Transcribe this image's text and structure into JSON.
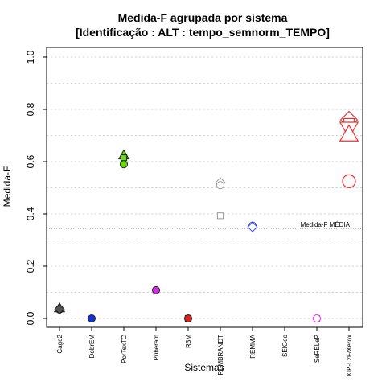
{
  "chart_data": {
    "type": "scatter",
    "title": "Medida-F agrupada por sistema",
    "subtitle": "[Identificação : ALT : tempo_semnorm_TEMPO]",
    "xlabel": "Sistemas",
    "ylabel": "Medida-F",
    "ylim": [
      0,
      1
    ],
    "yticks": [
      "0.0",
      "0.2",
      "0.4",
      "0.6",
      "0.8",
      "1.0"
    ],
    "grid": "horizontal dotted",
    "categories": [
      "Cage2",
      "DobrEM",
      "PorTexTO",
      "Priberam",
      "R3M",
      "REMBRANDT",
      "REMMA",
      "SEIGeo",
      "SeRELeP",
      "XIP-L2F/Xerox"
    ],
    "reference_line": {
      "label": "Medida-F MÉDIA",
      "value": 0.345
    },
    "points": [
      {
        "category": "Cage2",
        "y": 0.037,
        "shape": "square",
        "color": "#555555"
      },
      {
        "category": "Cage2",
        "y": 0.04,
        "shape": "triangle",
        "color": "#555555"
      },
      {
        "category": "Cage2",
        "y": 0.034,
        "shape": "circle",
        "color": "#555555"
      },
      {
        "category": "Cage2",
        "y": 0.036,
        "shape": "diamond",
        "color": "#555555"
      },
      {
        "category": "DobrEM",
        "y": 0.0,
        "shape": "circle",
        "color": "#1133dd"
      },
      {
        "category": "PorTexTO",
        "y": 0.625,
        "shape": "triangle",
        "color": "#66dd11"
      },
      {
        "category": "PorTexTO",
        "y": 0.615,
        "shape": "square",
        "color": "#66dd11"
      },
      {
        "category": "PorTexTO",
        "y": 0.59,
        "shape": "circle",
        "color": "#66dd11"
      },
      {
        "category": "Priberam",
        "y": 0.108,
        "shape": "circle",
        "color": "#cc33dd"
      },
      {
        "category": "R3M",
        "y": 0.0,
        "shape": "square",
        "color": "#dd2222"
      },
      {
        "category": "R3M",
        "y": 0.0,
        "shape": "circle",
        "color": "#dd2222"
      },
      {
        "category": "REMBRANDT",
        "y": 0.52,
        "shape": "diamond",
        "color": "#999999"
      },
      {
        "category": "REMBRANDT",
        "y": 0.51,
        "shape": "circle",
        "color": "#999999"
      },
      {
        "category": "REMBRANDT",
        "y": 0.393,
        "shape": "square",
        "color": "#999999"
      },
      {
        "category": "REMMA",
        "y": 0.355,
        "shape": "circle",
        "color": "#3344ee"
      },
      {
        "category": "REMMA",
        "y": 0.35,
        "shape": "diamond",
        "color": "#3344ee"
      },
      {
        "category": "SeRELeP",
        "y": 0.0,
        "shape": "square",
        "color": "#ee22ee"
      },
      {
        "category": "SeRELeP",
        "y": 0.0,
        "shape": "circle",
        "color": "#ee22ee"
      },
      {
        "category": "XIP-L2F/Xerox",
        "y": 0.76,
        "shape": "diamond",
        "color": "#ee3333",
        "size": "large"
      },
      {
        "category": "XIP-L2F/Xerox",
        "y": 0.745,
        "shape": "square",
        "color": "#ee3333",
        "size": "large"
      },
      {
        "category": "XIP-L2F/Xerox",
        "y": 0.725,
        "shape": "triangle-down",
        "color": "#ee3333",
        "size": "large"
      },
      {
        "category": "XIP-L2F/Xerox",
        "y": 0.705,
        "shape": "triangle",
        "color": "#ee3333",
        "size": "large"
      },
      {
        "category": "XIP-L2F/Xerox",
        "y": 0.525,
        "shape": "circle",
        "color": "#ee3333",
        "size": "large"
      }
    ]
  }
}
